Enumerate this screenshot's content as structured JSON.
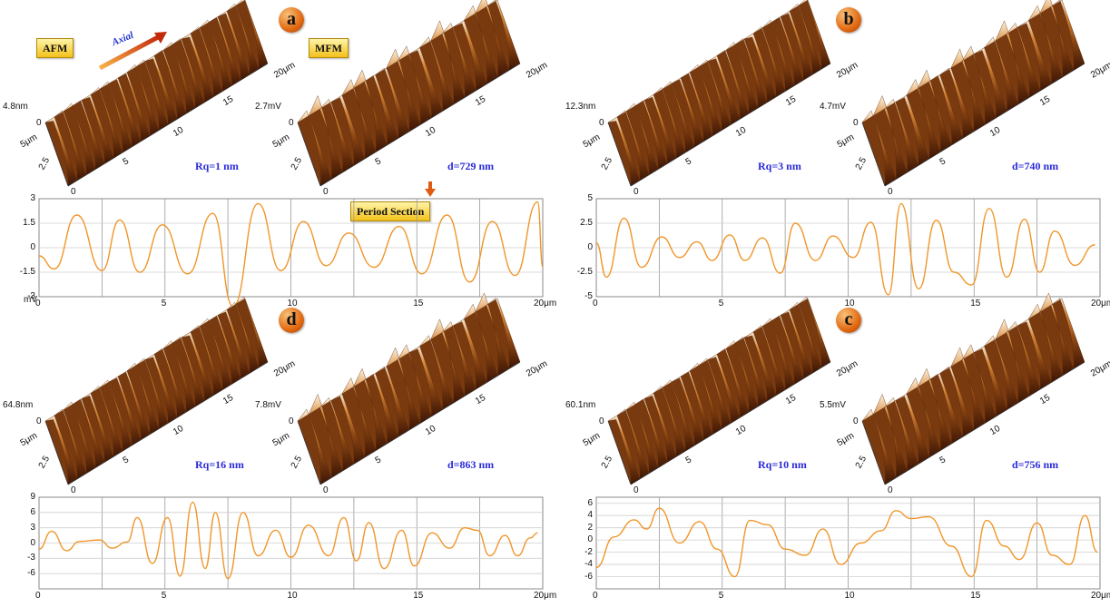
{
  "chart_data": [
    {
      "panel": "a",
      "type": "line",
      "tags": {
        "afm": "AFM",
        "mfm": "MFM",
        "period": "Period Section",
        "axial": "Axial"
      },
      "afm": {
        "zlabel": "4.8nm",
        "z0": "0",
        "y1": "5μm",
        "y2": "2.5",
        "y0": "0",
        "x_ticks": [
          "5",
          "10",
          "15",
          "20μm"
        ],
        "stat": "Rq=1 nm"
      },
      "mfm": {
        "zlabel": "2.7mV",
        "z0": "0",
        "y1": "5μm",
        "y2": "2.5",
        "y0": "0",
        "x_ticks": [
          "5",
          "10",
          "15",
          "20μm"
        ],
        "stat": "d=729 nm"
      },
      "profile": {
        "xlim": [
          0,
          20
        ],
        "ylim": [
          -3,
          3
        ],
        "x_ticks": [
          "0",
          "5",
          "10",
          "15",
          "20μm"
        ],
        "y_ticks": [
          {
            "v": 3,
            "t": "3"
          },
          {
            "v": 1.5,
            "t": "1.5"
          },
          {
            "v": 0,
            "t": "0"
          },
          {
            "v": -1.5,
            "t": "-1.5"
          },
          {
            "v": -3,
            "t": "-3"
          }
        ],
        "yunit": "mV",
        "x": [
          0,
          0.6,
          1.5,
          2.5,
          3.2,
          4.0,
          4.9,
          5.9,
          6.9,
          7.7,
          8.7,
          9.6,
          10.5,
          11.4,
          12.3,
          13.3,
          14.3,
          15.2,
          16.2,
          17.1,
          18.0,
          18.9,
          19.8
        ],
        "values": [
          -0.5,
          -1.3,
          2.0,
          -1.4,
          1.7,
          -1.5,
          1.4,
          -1.6,
          2.1,
          -3.6,
          2.7,
          -1.4,
          1.6,
          -1.1,
          0.9,
          -1.2,
          1.3,
          -1.6,
          2.0,
          -2.1,
          1.6,
          -1.7,
          2.8
        ],
        "tail": [
          [
            20,
            -1.2
          ]
        ]
      }
    },
    {
      "panel": "b",
      "type": "line",
      "afm": {
        "zlabel": "12.3nm",
        "z0": "0",
        "y1": "5μm",
        "y2": "2.5",
        "y0": "0",
        "x_ticks": [
          "5",
          "10",
          "15",
          "20μm"
        ],
        "stat": "Rq=3 nm"
      },
      "mfm": {
        "zlabel": "4.7mV",
        "z0": "0",
        "y1": "5μm",
        "y2": "2.5",
        "y0": "0",
        "x_ticks": [
          "5",
          "10",
          "15",
          "20μm"
        ],
        "stat": "d=740 nm"
      },
      "profile": {
        "xlim": [
          0,
          20
        ],
        "ylim": [
          -5,
          5
        ],
        "x_ticks": [
          "0",
          "5",
          "10",
          "15",
          "20μm"
        ],
        "y_ticks": [
          {
            "v": 5,
            "t": "5"
          },
          {
            "v": 2.5,
            "t": "2.5"
          },
          {
            "v": 0,
            "t": "0"
          },
          {
            "v": -2.5,
            "t": "-2.5"
          },
          {
            "v": -5,
            "t": "-5"
          }
        ],
        "x": [
          0,
          0.4,
          1.1,
          1.8,
          2.6,
          3.3,
          4.0,
          4.6,
          5.3,
          5.9,
          6.6,
          7.3,
          7.9,
          8.7,
          9.4,
          10.2,
          10.9,
          11.6,
          12.1,
          12.8,
          13.5,
          14.2,
          14.9,
          15.6,
          16.3,
          17.0,
          17.6,
          18.2,
          19.0,
          19.8
        ],
        "values": [
          0.5,
          -3.0,
          3.0,
          -2.0,
          1.1,
          -1.0,
          0.6,
          -1.3,
          1.3,
          -1.3,
          1.0,
          -2.6,
          2.5,
          -1.3,
          1.2,
          -1.0,
          2.6,
          -4.8,
          4.5,
          -4.2,
          2.8,
          -2.5,
          -3.8,
          4.0,
          -3.0,
          2.9,
          -2.5,
          1.7,
          -1.8,
          0.3
        ],
        "tail": []
      }
    },
    {
      "panel": "d",
      "type": "line",
      "afm": {
        "zlabel": "64.8nm",
        "z0": "0",
        "y1": "5μm",
        "y2": "2.5",
        "y0": "0",
        "x_ticks": [
          "5",
          "10",
          "15",
          "20μm"
        ],
        "stat": "Rq=16 nm"
      },
      "mfm": {
        "zlabel": "7.8mV",
        "z0": "0",
        "y1": "5μm",
        "y2": "2.5",
        "y0": "0",
        "x_ticks": [
          "5",
          "10",
          "15",
          "20μm"
        ],
        "stat": "d=863 nm"
      },
      "profile": {
        "xlim": [
          0,
          20
        ],
        "ylim": [
          -9,
          9
        ],
        "x_ticks": [
          "0",
          "5",
          "10",
          "15",
          "20μm"
        ],
        "y_ticks": [
          {
            "v": 9,
            "t": "9"
          },
          {
            "v": 6,
            "t": "6"
          },
          {
            "v": 3,
            "t": "3"
          },
          {
            "v": 0,
            "t": "0"
          },
          {
            "v": -3,
            "t": "-3"
          },
          {
            "v": -6,
            "t": "-6"
          }
        ],
        "x": [
          0,
          0.5,
          1.1,
          1.6,
          2.4,
          2.9,
          3.5,
          3.9,
          4.5,
          5.1,
          5.6,
          6.1,
          6.6,
          7.0,
          7.5,
          8.1,
          8.7,
          9.4,
          10.0,
          10.7,
          11.5,
          12.1,
          12.6,
          13.1,
          13.7,
          14.4,
          14.9,
          15.6,
          16.3,
          16.9,
          17.4,
          17.9,
          18.5,
          19.0,
          19.5,
          19.8
        ],
        "values": [
          -1.2,
          2.3,
          -1.5,
          0.3,
          0.6,
          -1.0,
          0.2,
          5.0,
          -4.0,
          5.0,
          -6.5,
          8.0,
          -5.0,
          6.0,
          -7.0,
          6.0,
          -2.5,
          2.5,
          -2.8,
          3.5,
          -2.5,
          5.0,
          -3.5,
          4.0,
          -5.0,
          2.5,
          -4.5,
          2.0,
          -1.0,
          3.0,
          2.5,
          -2.5,
          1.5,
          -2.5,
          1.0,
          2.0
        ],
        "tail": []
      }
    },
    {
      "panel": "c",
      "type": "line",
      "afm": {
        "zlabel": "60.1nm",
        "z0": "0",
        "y1": "5μm",
        "y2": "2.5",
        "y0": "0",
        "x_ticks": [
          "5",
          "10",
          "15",
          "20μm"
        ],
        "stat": "Rq=10 nm"
      },
      "mfm": {
        "zlabel": "5.5mV",
        "z0": "0",
        "y1": "5μm",
        "y2": "2.5",
        "y0": "0",
        "x_ticks": [
          "5",
          "10",
          "15",
          "20μm"
        ],
        "stat": "d=756 nm"
      },
      "profile": {
        "xlim": [
          0,
          20
        ],
        "ylim": [
          -8,
          7
        ],
        "x_ticks": [
          "0",
          "5",
          "10",
          "15",
          "20μm"
        ],
        "y_ticks": [
          {
            "v": 6,
            "t": "6"
          },
          {
            "v": 4,
            "t": "4"
          },
          {
            "v": 2,
            "t": "2"
          },
          {
            "v": 0,
            "t": "0"
          },
          {
            "v": -2,
            "t": "-2"
          },
          {
            "v": -4,
            "t": "-4"
          },
          {
            "v": -6,
            "t": "-6"
          }
        ],
        "x": [
          0,
          0.7,
          1.5,
          2.0,
          2.5,
          3.3,
          4.1,
          4.8,
          5.5,
          6.1,
          6.8,
          7.5,
          8.3,
          9.0,
          9.7,
          10.5,
          11.3,
          11.9,
          12.5,
          13.2,
          14.1,
          14.9,
          15.5,
          16.2,
          16.8,
          17.5,
          18.1,
          18.8,
          19.4,
          19.9
        ],
        "values": [
          -4.5,
          0.5,
          3.3,
          1.8,
          5.2,
          -0.5,
          3.0,
          -1.5,
          -6.0,
          3.2,
          2.5,
          -1.5,
          -2.5,
          1.8,
          -4.0,
          -0.5,
          1.5,
          4.8,
          3.5,
          3.8,
          -1.0,
          -6.0,
          3.2,
          -1.0,
          -3.2,
          2.8,
          -2.5,
          -4.0,
          4.0,
          -2.0
        ],
        "tail": []
      }
    }
  ]
}
